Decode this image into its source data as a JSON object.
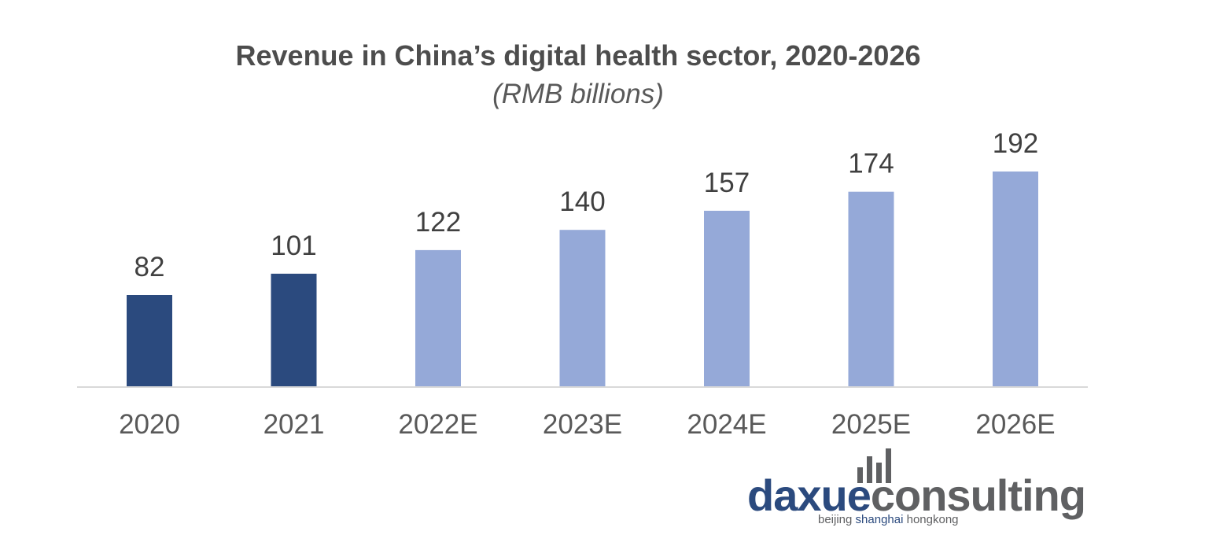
{
  "chart_data": {
    "type": "bar",
    "title": "Revenue in China’s digital health sector, 2020-2026",
    "subtitle": "(RMB billions)",
    "categories": [
      "2020",
      "2021",
      "2022E",
      "2023E",
      "2024E",
      "2025E",
      "2026E"
    ],
    "values": [
      82,
      101,
      122,
      140,
      157,
      174,
      192
    ],
    "value_labels": [
      "82",
      "101",
      "122",
      "140",
      "157",
      "174",
      "192"
    ],
    "actual_or_estimate": [
      "actual",
      "actual",
      "estimate",
      "estimate",
      "estimate",
      "estimate",
      "estimate"
    ],
    "bar_colors": [
      "#2b4a7e",
      "#2b4a7e",
      "#95a9d8",
      "#95a9d8",
      "#95a9d8",
      "#95a9d8",
      "#95a9d8"
    ],
    "ylim": [
      0,
      192
    ],
    "grid": false,
    "legend": "none",
    "data_labels": "above bars"
  },
  "branding": {
    "logo_part1": "daxue",
    "logo_part2": "consulting",
    "tagline_1": "beijing ",
    "tagline_2": "shanghai",
    "tagline_3": " hongkong",
    "colors": {
      "primary": "#2b4a7e",
      "secondary": "#5f6062"
    }
  }
}
